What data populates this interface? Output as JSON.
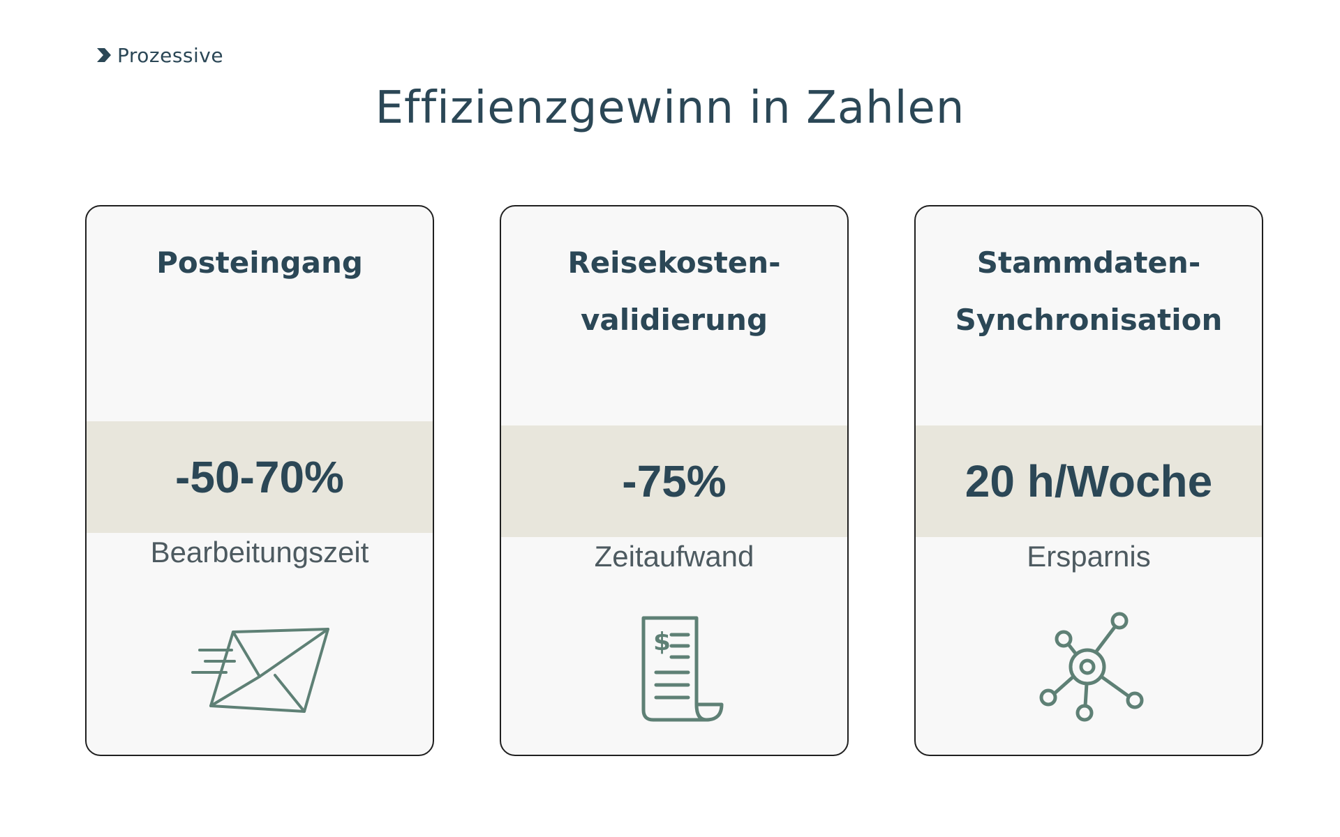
{
  "logo": {
    "text": "Prozessive",
    "icon": "chevron-right-icon"
  },
  "page": {
    "title": "Effizienzgewinn in Zahlen"
  },
  "cards": [
    {
      "title_lines": [
        "Posteingang"
      ],
      "metric": "-50-70%",
      "label": "Bearbeitungszeit",
      "icon": "envelope-icon"
    },
    {
      "title_lines": [
        "Reisekosten-",
        "validierung"
      ],
      "metric": "-75%",
      "label": "Zeitaufwand",
      "icon": "receipt-icon"
    },
    {
      "title_lines": [
        "Stammdaten-",
        "Synchronisation"
      ],
      "metric": "20 h/Woche",
      "label": "Ersparnis",
      "icon": "network-icon"
    }
  ],
  "colors": {
    "text": "#2b4756",
    "band": "#e8e6dc",
    "icon": "#5e8075",
    "card_bg": "#f8f8f8"
  }
}
